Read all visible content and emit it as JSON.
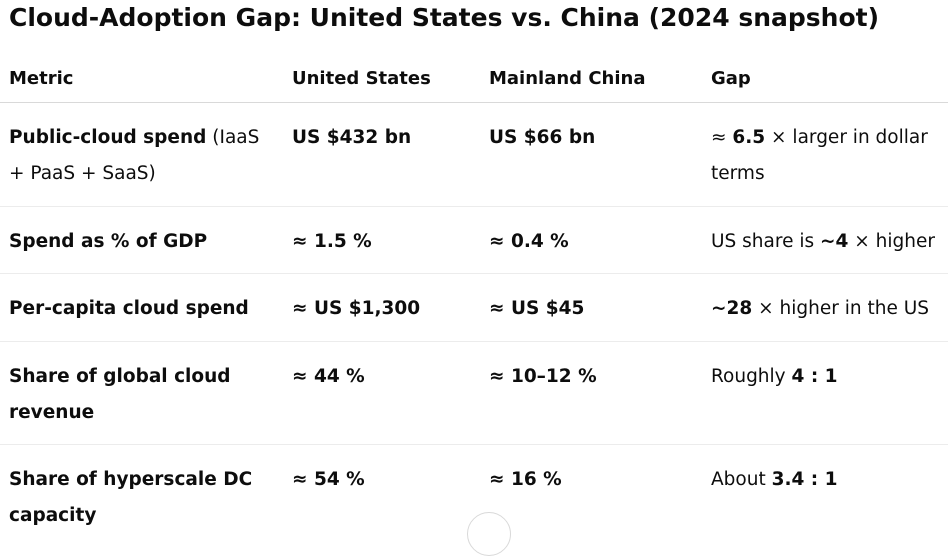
{
  "title": "Cloud-Adoption Gap: United States vs. China (2024 snapshot)",
  "table": {
    "headers": [
      "Metric",
      "United States",
      "Mainland China",
      "Gap"
    ],
    "rows": [
      {
        "metric_bold": "Public-cloud spend",
        "metric_rest": " (IaaS + PaaS + SaaS)",
        "us": "US $432 bn",
        "china": "US $66 bn",
        "gap_pre": "≈ ",
        "gap_bold": "6.5",
        "gap_post": " × larger in dollar terms"
      },
      {
        "metric_bold": "Spend as % of GDP",
        "metric_rest": "",
        "us": "≈ 1.5 %",
        "china": "≈ 0.4 %",
        "gap_pre": "US share is ",
        "gap_bold": "~4",
        "gap_post": " × higher"
      },
      {
        "metric_bold": "Per-capita cloud spend",
        "metric_rest": "",
        "us": "≈ US $1,300",
        "china": "≈ US $45",
        "gap_pre": "",
        "gap_bold": "~28",
        "gap_post": " × higher in the US"
      },
      {
        "metric_bold": "Share of global cloud revenue",
        "metric_rest": "",
        "us": "≈ 44 %",
        "china": "≈ 10–12 %",
        "gap_pre": "Roughly ",
        "gap_bold": "4 : 1",
        "gap_post": ""
      },
      {
        "metric_bold": "Share of hyperscale DC capacity",
        "metric_rest": "",
        "us": "≈ 54 %",
        "china": "≈ 16 %",
        "gap_pre": "About ",
        "gap_bold": "3.4 : 1",
        "gap_post": ""
      }
    ]
  }
}
